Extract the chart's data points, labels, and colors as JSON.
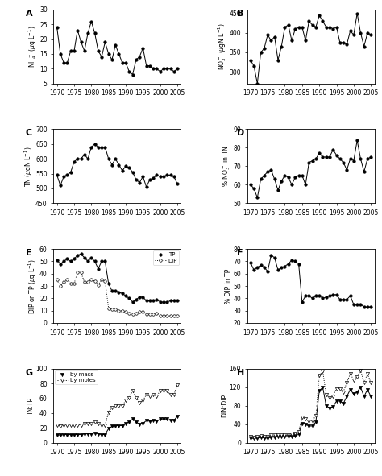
{
  "A": {
    "years": [
      1970,
      1971,
      1972,
      1973,
      1974,
      1975,
      1976,
      1977,
      1978,
      1979,
      1980,
      1981,
      1982,
      1983,
      1984,
      1985,
      1986,
      1987,
      1988,
      1989,
      1990,
      1991,
      1992,
      1993,
      1994,
      1995,
      1996,
      1997,
      1998,
      1999,
      2000,
      2001,
      2002,
      2003,
      2004,
      2005
    ],
    "values": [
      24,
      15,
      12,
      12,
      16,
      16,
      23,
      19,
      16,
      22,
      26,
      22,
      16,
      14,
      19,
      15,
      13,
      18,
      15,
      12,
      12,
      9,
      8,
      13,
      14,
      17,
      11,
      11,
      10,
      10,
      9,
      10,
      10,
      10,
      9,
      10
    ],
    "ylabel": "NH$_4^+$ ($\\mu$g L$^{-1}$)",
    "ylim": [
      5,
      30
    ],
    "yticks": [
      5,
      10,
      15,
      20,
      25,
      30
    ],
    "label": "A"
  },
  "B": {
    "years": [
      1970,
      1971,
      1972,
      1973,
      1974,
      1975,
      1976,
      1977,
      1978,
      1979,
      1980,
      1981,
      1982,
      1983,
      1984,
      1985,
      1986,
      1987,
      1988,
      1989,
      1990,
      1991,
      1992,
      1993,
      1994,
      1995,
      1996,
      1997,
      1998,
      1999,
      2000,
      2001,
      2002,
      2003,
      2004,
      2005
    ],
    "values": [
      330,
      315,
      270,
      350,
      360,
      395,
      380,
      390,
      330,
      365,
      415,
      420,
      380,
      410,
      415,
      415,
      380,
      430,
      420,
      415,
      445,
      430,
      415,
      415,
      410,
      415,
      375,
      375,
      370,
      405,
      395,
      450,
      400,
      365,
      400,
      395
    ],
    "ylabel": "NO$_3^-$ ($\\mu$gN L$^{-1}$)",
    "ylim": [
      270,
      460
    ],
    "yticks": [
      300,
      350,
      400,
      450
    ],
    "label": "B"
  },
  "C": {
    "years": [
      1970,
      1971,
      1972,
      1973,
      1974,
      1975,
      1976,
      1977,
      1978,
      1979,
      1980,
      1981,
      1982,
      1983,
      1984,
      1985,
      1986,
      1987,
      1988,
      1989,
      1990,
      1991,
      1992,
      1993,
      1994,
      1995,
      1996,
      1997,
      1998,
      1999,
      2000,
      2001,
      2002,
      2003,
      2004,
      2005
    ],
    "values": [
      545,
      510,
      540,
      545,
      555,
      590,
      600,
      600,
      615,
      600,
      640,
      650,
      640,
      640,
      640,
      600,
      580,
      600,
      580,
      560,
      575,
      570,
      555,
      530,
      520,
      540,
      505,
      530,
      535,
      545,
      540,
      540,
      545,
      545,
      540,
      515
    ],
    "ylabel": "TN ($\\mu$gN L$^{-1}$)",
    "ylim": [
      450,
      700
    ],
    "yticks": [
      450,
      500,
      550,
      600,
      650,
      700
    ],
    "label": "C"
  },
  "D": {
    "years": [
      1970,
      1971,
      1972,
      1973,
      1974,
      1975,
      1976,
      1977,
      1978,
      1979,
      1980,
      1981,
      1982,
      1983,
      1984,
      1985,
      1986,
      1987,
      1988,
      1989,
      1990,
      1991,
      1992,
      1993,
      1994,
      1995,
      1996,
      1997,
      1998,
      1999,
      2000,
      2001,
      2002,
      2003,
      2004,
      2005
    ],
    "values": [
      60,
      58,
      53,
      63,
      65,
      67,
      68,
      63,
      57,
      62,
      65,
      64,
      60,
      64,
      65,
      65,
      60,
      72,
      73,
      74,
      77,
      75,
      75,
      75,
      79,
      76,
      74,
      72,
      68,
      74,
      73,
      84,
      74,
      67,
      74,
      75
    ],
    "ylabel": "% NO$_3^-$ in TN",
    "ylim": [
      50,
      90
    ],
    "yticks": [
      50,
      60,
      70,
      80,
      90
    ],
    "label": "D"
  },
  "E": {
    "years": [
      1970,
      1971,
      1972,
      1973,
      1974,
      1975,
      1976,
      1977,
      1978,
      1979,
      1980,
      1981,
      1982,
      1983,
      1984,
      1985,
      1986,
      1987,
      1988,
      1989,
      1990,
      1991,
      1992,
      1993,
      1994,
      1995,
      1996,
      1997,
      1998,
      1999,
      2000,
      2001,
      2002,
      2003,
      2004,
      2005
    ],
    "TP": [
      51,
      48,
      50,
      52,
      50,
      52,
      55,
      56,
      53,
      50,
      53,
      50,
      44,
      50,
      50,
      32,
      26,
      26,
      25,
      24,
      22,
      20,
      17,
      19,
      21,
      21,
      18,
      18,
      18,
      19,
      17,
      17,
      17,
      18,
      18,
      18
    ],
    "DIP": [
      35,
      30,
      33,
      35,
      32,
      32,
      41,
      41,
      33,
      33,
      35,
      34,
      31,
      35,
      34,
      12,
      11,
      11,
      10,
      10,
      9,
      8,
      7,
      8,
      9,
      9,
      7,
      7,
      7,
      8,
      6,
      6,
      6,
      6,
      6,
      6
    ],
    "ylabel": "DIP or TP ($\\mu$g L$^{-1}$)",
    "ylim": [
      0,
      60
    ],
    "yticks": [
      0,
      10,
      20,
      30,
      40,
      50,
      60
    ],
    "label": "E"
  },
  "F": {
    "years": [
      1970,
      1971,
      1972,
      1973,
      1974,
      1975,
      1976,
      1977,
      1978,
      1979,
      1980,
      1981,
      1982,
      1983,
      1984,
      1985,
      1986,
      1987,
      1988,
      1989,
      1990,
      1991,
      1992,
      1993,
      1994,
      1995,
      1996,
      1997,
      1998,
      1999,
      2000,
      2001,
      2002,
      2003,
      2004,
      2005
    ],
    "values": [
      69,
      63,
      65,
      67,
      65,
      62,
      75,
      73,
      63,
      65,
      66,
      68,
      71,
      70,
      68,
      37,
      42,
      42,
      40,
      42,
      42,
      40,
      41,
      42,
      43,
      43,
      39,
      39,
      39,
      42,
      35,
      35,
      35,
      33,
      33,
      33
    ],
    "ylabel": "% DIP in TP",
    "ylim": [
      20,
      80
    ],
    "yticks": [
      20,
      30,
      40,
      50,
      60,
      70,
      80
    ],
    "label": "F"
  },
  "G": {
    "years": [
      1970,
      1971,
      1972,
      1973,
      1974,
      1975,
      1976,
      1977,
      1978,
      1979,
      1980,
      1981,
      1982,
      1983,
      1984,
      1985,
      1986,
      1987,
      1988,
      1989,
      1990,
      1991,
      1992,
      1993,
      1994,
      1995,
      1996,
      1997,
      1998,
      1999,
      2000,
      2001,
      2002,
      2003,
      2004,
      2005
    ],
    "by_mass": [
      11,
      10,
      11,
      11,
      11,
      11,
      11,
      11,
      12,
      12,
      12,
      13,
      12,
      11,
      11,
      19,
      22,
      23,
      23,
      23,
      26,
      28,
      32,
      28,
      25,
      26,
      30,
      29,
      30,
      29,
      32,
      32,
      32,
      30,
      30,
      36
    ],
    "by_moles": [
      24,
      22,
      24,
      24,
      24,
      24,
      24,
      24,
      26,
      26,
      26,
      28,
      26,
      24,
      24,
      41,
      48,
      50,
      50,
      50,
      57,
      61,
      70,
      61,
      54,
      57,
      65,
      63,
      65,
      63,
      70,
      70,
      70,
      65,
      65,
      78
    ],
    "ylabel": "TN:TP",
    "ylim": [
      0,
      100
    ],
    "yticks": [
      0,
      20,
      40,
      60,
      80,
      100
    ],
    "label": "G"
  },
  "H": {
    "years": [
      1970,
      1971,
      1972,
      1973,
      1974,
      1975,
      1976,
      1977,
      1978,
      1979,
      1980,
      1981,
      1982,
      1983,
      1984,
      1985,
      1986,
      1987,
      1988,
      1989,
      1990,
      1991,
      1992,
      1993,
      1994,
      1995,
      1996,
      1997,
      1998,
      1999,
      2000,
      2001,
      2002,
      2003,
      2004,
      2005
    ],
    "by_mass": [
      10,
      9,
      10,
      12,
      10,
      10,
      12,
      12,
      13,
      13,
      13,
      13,
      14,
      15,
      18,
      42,
      40,
      36,
      36,
      45,
      112,
      120,
      80,
      75,
      78,
      90,
      90,
      85,
      100,
      115,
      105,
      110,
      120,
      100,
      115,
      100
    ],
    "by_moles": [
      13,
      12,
      13,
      15,
      13,
      13,
      16,
      16,
      17,
      17,
      17,
      17,
      18,
      20,
      23,
      55,
      52,
      47,
      47,
      59,
      145,
      155,
      104,
      97,
      101,
      117,
      117,
      110,
      130,
      149,
      136,
      143,
      156,
      130,
      149,
      130
    ],
    "ylabel": "DIN:DIP",
    "ylim": [
      0,
      160
    ],
    "yticks": [
      0,
      40,
      80,
      120,
      160
    ],
    "label": "H"
  },
  "xlim": [
    1969,
    2006
  ],
  "xticks": [
    1970,
    1975,
    1980,
    1985,
    1990,
    1995,
    2000,
    2005
  ]
}
